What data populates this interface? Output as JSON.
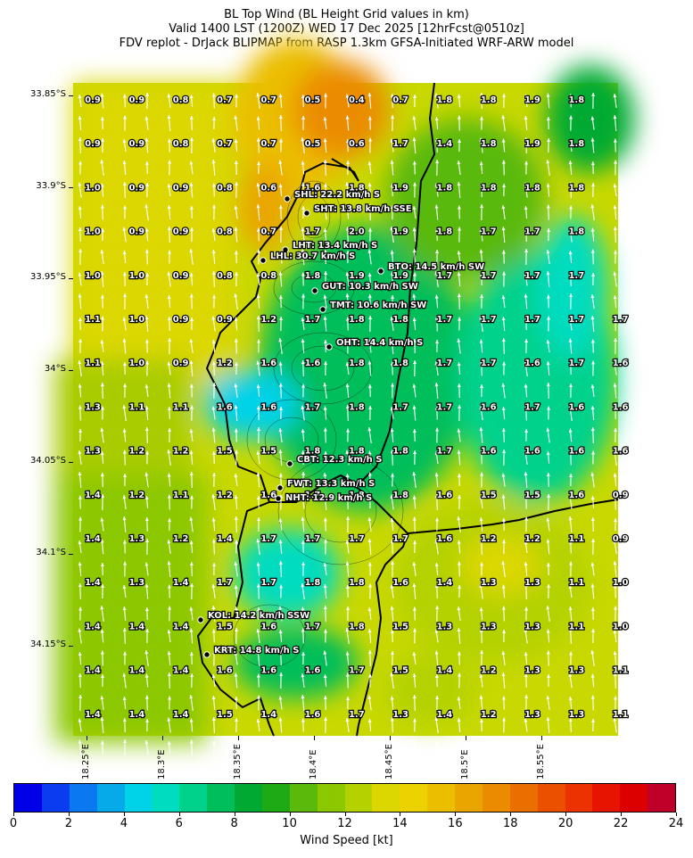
{
  "title": {
    "line1": "BL Top Wind (BL Height Grid values in km)",
    "line2": "Valid 1400 LST (1200Z) WED 17 Dec 2025 [12hrFcst@0510z]",
    "line3": "FDV replot - DrJack BLIPMAP from RASP 1.3km GFSA-Initiated WRF-ARW model"
  },
  "lat_labels": [
    "33.85°S",
    "33.9°S",
    "33.95°S",
    "34°S",
    "34.05°S",
    "34.1°S",
    "34.15°S"
  ],
  "lon_labels": [
    "18.25°E",
    "18.3°E",
    "18.35°E",
    "18.4°E",
    "18.45°E",
    "18.5°E",
    "18.55°E"
  ],
  "grid_values": [
    [
      "0.9",
      "0.9",
      "0.8",
      "0.7",
      "0.7",
      "0.5",
      "0.4",
      "0.7",
      "1.8",
      "1.8",
      "1.9",
      "1.8",
      ""
    ],
    [
      "0.9",
      "0.9",
      "0.8",
      "0.7",
      "0.7",
      "0.5",
      "0.6",
      "1.7",
      "1.4",
      "1.8",
      "1.9",
      "1.8",
      ""
    ],
    [
      "1.0",
      "0.9",
      "0.9",
      "0.8",
      "0.6",
      "1.6",
      "1.8",
      "1.9",
      "1.8",
      "1.8",
      "1.8",
      "1.8",
      ""
    ],
    [
      "1.0",
      "0.9",
      "0.9",
      "0.8",
      "0.7",
      "1.7",
      "2.0",
      "1.9",
      "1.8",
      "1.7",
      "1.7",
      "1.8",
      ""
    ],
    [
      "1.0",
      "1.0",
      "0.9",
      "0.8",
      "0.8",
      "1.8",
      "1.9",
      "1.9",
      "1.7",
      "1.7",
      "1.7",
      "1.7",
      ""
    ],
    [
      "1.1",
      "1.0",
      "0.9",
      "0.9",
      "1.2",
      "1.7",
      "1.8",
      "1.8",
      "1.7",
      "1.7",
      "1.7",
      "1.7",
      "1.7"
    ],
    [
      "1.1",
      "1.0",
      "0.9",
      "1.2",
      "1.6",
      "1.6",
      "1.8",
      "1.8",
      "1.7",
      "1.7",
      "1.6",
      "1.7",
      "1.6"
    ],
    [
      "1.3",
      "1.1",
      "1.1",
      "1.6",
      "1.6",
      "1.7",
      "1.8",
      "1.7",
      "1.7",
      "1.6",
      "1.7",
      "1.6",
      "1.6"
    ],
    [
      "1.3",
      "1.2",
      "1.2",
      "1.5",
      "1.5",
      "1.8",
      "1.8",
      "1.8",
      "1.7",
      "1.6",
      "1.6",
      "1.6",
      "1.6"
    ],
    [
      "1.4",
      "1.2",
      "1.1",
      "1.2",
      "1.6",
      "1.7",
      "1.8",
      "1.8",
      "1.6",
      "1.5",
      "1.5",
      "1.6",
      "0.9"
    ],
    [
      "1.4",
      "1.3",
      "1.2",
      "1.4",
      "1.7",
      "1.7",
      "1.7",
      "1.7",
      "1.6",
      "1.2",
      "1.2",
      "1.1",
      "0.9"
    ],
    [
      "1.4",
      "1.3",
      "1.4",
      "1.7",
      "1.7",
      "1.8",
      "1.8",
      "1.6",
      "1.4",
      "1.3",
      "1.3",
      "1.1",
      "1.0"
    ],
    [
      "1.4",
      "1.4",
      "1.4",
      "1.5",
      "1.6",
      "1.7",
      "1.8",
      "1.5",
      "1.3",
      "1.3",
      "1.3",
      "1.1",
      "1.0"
    ],
    [
      "1.4",
      "1.4",
      "1.4",
      "1.6",
      "1.6",
      "1.6",
      "1.7",
      "1.5",
      "1.4",
      "1.2",
      "1.3",
      "1.3",
      "1.1"
    ],
    [
      "1.4",
      "1.4",
      "1.4",
      "1.5",
      "1.4",
      "1.6",
      "1.7",
      "1.3",
      "1.4",
      "1.2",
      "1.3",
      "1.3",
      "1.1"
    ]
  ],
  "stations": [
    {
      "name": "SHL: 22.2 km/h S"
    },
    {
      "name": "SHT: 13.8 km/h SSE"
    },
    {
      "name": "LHT: 13.4 km/h S"
    },
    {
      "name": "LHL: 30.7 km/h S"
    },
    {
      "name": "BTO: 14.5 km/h SW"
    },
    {
      "name": "GUT: 10.3 km/h SW"
    },
    {
      "name": "TMT: 10.6 km/h SW"
    },
    {
      "name": "OHT: 14.4 km/h S"
    },
    {
      "name": "CBT: 12.3 km/h S"
    },
    {
      "name": "FWT: 13.3 km/h S"
    },
    {
      "name": "NHT: 12.9 km/h S"
    },
    {
      "name": "KOL: 14.2 km/h SSW"
    },
    {
      "name": "KRT: 14.8 km/h S"
    }
  ],
  "colorbar": {
    "label": "Wind Speed [kt]",
    "ticks": [
      "0",
      "2",
      "4",
      "6",
      "8",
      "10",
      "12",
      "14",
      "16",
      "18",
      "20",
      "22",
      "24"
    ],
    "colors": [
      "#0000e8",
      "#0a3cf0",
      "#0a78f0",
      "#06aae8",
      "#00d2e8",
      "#00dcc0",
      "#00d28c",
      "#00be5a",
      "#00aa32",
      "#1eaa14",
      "#5ab90a",
      "#8cc800",
      "#b4d200",
      "#dcd700",
      "#ebd200",
      "#ebbe00",
      "#eba500",
      "#eb8c00",
      "#eb6e00",
      "#eb5000",
      "#eb3200",
      "#e61400",
      "#dc0000",
      "#c00028"
    ]
  }
}
